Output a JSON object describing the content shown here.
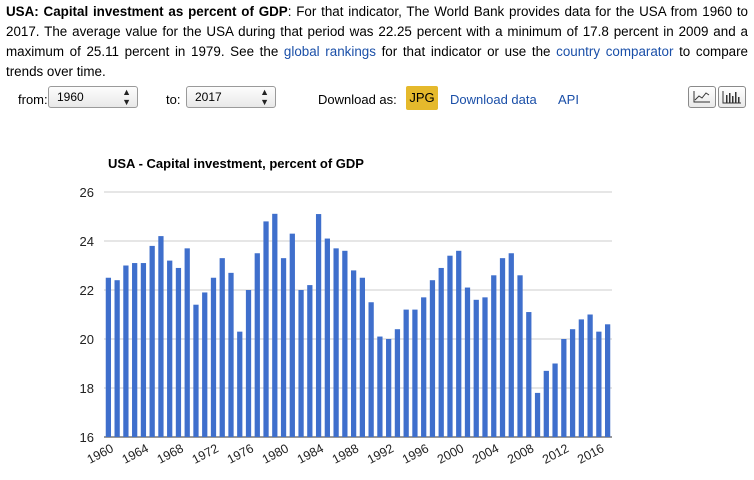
{
  "intro": {
    "heading": "USA: Capital investment as percent of GDP",
    "text1": ": For that indicator, The World Bank provides data for the USA from 1960 to 2017. The average value for the USA during that period was 22.25 percent with a minimum of 17.8 percent in 2009 and a maximum of 25.11 percent in 1979. See the ",
    "link1": "global rankings",
    "text2": " for that indicator or use the ",
    "link2": "country comparator",
    "text3": " to compare trends over time."
  },
  "controls": {
    "from_label": "from:",
    "from_value": "1960",
    "to_label": "to:",
    "to_value": "2017",
    "download_label": "Download as:",
    "jpg_label": "JPG",
    "download_data_label": "Download data",
    "api_label": "API",
    "accent": "#e5b92c",
    "link_color": "#1a4fa8"
  },
  "chart_data": {
    "type": "bar",
    "title": "USA - Capital investment, percent of GDP",
    "bar_color": "#3f6fcc",
    "ylim": [
      16,
      26
    ],
    "yticks": [
      16,
      18,
      20,
      22,
      24,
      26
    ],
    "grid": true,
    "categories": [
      1960,
      1961,
      1962,
      1963,
      1964,
      1965,
      1966,
      1967,
      1968,
      1969,
      1970,
      1971,
      1972,
      1973,
      1974,
      1975,
      1976,
      1977,
      1978,
      1979,
      1980,
      1981,
      1982,
      1983,
      1984,
      1985,
      1986,
      1987,
      1988,
      1989,
      1990,
      1991,
      1992,
      1993,
      1994,
      1995,
      1996,
      1997,
      1998,
      1999,
      2000,
      2001,
      2002,
      2003,
      2004,
      2005,
      2006,
      2007,
      2008,
      2009,
      2010,
      2011,
      2012,
      2013,
      2014,
      2015,
      2016,
      2017
    ],
    "xtick_labels": [
      "1960",
      "1964",
      "1968",
      "1972",
      "1976",
      "1980",
      "1984",
      "1988",
      "1992",
      "1996",
      "2000",
      "2004",
      "2008",
      "2012",
      "2016"
    ],
    "values": [
      22.5,
      22.4,
      23.0,
      23.1,
      23.1,
      23.8,
      24.2,
      23.2,
      22.9,
      23.7,
      21.4,
      21.9,
      22.5,
      23.3,
      22.7,
      20.3,
      22.0,
      23.5,
      24.8,
      25.11,
      23.3,
      24.3,
      22.0,
      22.2,
      25.1,
      24.1,
      23.7,
      23.6,
      22.8,
      22.5,
      21.5,
      20.1,
      20.0,
      20.4,
      21.2,
      21.2,
      21.7,
      22.4,
      22.9,
      23.4,
      23.6,
      22.1,
      21.6,
      21.7,
      22.6,
      23.3,
      23.5,
      22.6,
      21.1,
      17.8,
      18.7,
      19.0,
      20.0,
      20.4,
      20.8,
      21.0,
      20.3,
      20.6
    ]
  }
}
